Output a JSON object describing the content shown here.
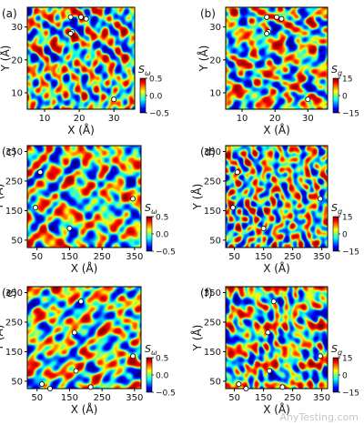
{
  "colormap": [
    "#00007f",
    "#0000ff",
    "#007fff",
    "#00ffff",
    "#7fff7f",
    "#ffff00",
    "#ff7f00",
    "#ff0000",
    "#7f0000"
  ],
  "watermark": "AnyTesting.com",
  "chart_data": [
    {
      "type": "heatmap",
      "panel_label": "(a)",
      "xlabel": "X (Å)",
      "ylabel": "Y (Å)",
      "xlim": [
        5,
        36
      ],
      "ylim": [
        5,
        36
      ],
      "xticks": [
        10,
        20,
        30
      ],
      "yticks": [
        10,
        20,
        30
      ],
      "colorbar": {
        "label": "Sω",
        "label_base": "S",
        "label_sub": "ω",
        "range": [
          -0.5,
          0.5
        ],
        "ticks": [
          0.5,
          0.0,
          -0.5
        ],
        "tick_labels": [
          "0.5",
          "0.0",
          "−0.5"
        ]
      },
      "points": [
        [
          17.5,
          33.0
        ],
        [
          20.5,
          33.0
        ],
        [
          22.0,
          32.5
        ],
        [
          18.0,
          28.5
        ],
        [
          17.5,
          28.0
        ],
        [
          30.0,
          8.0
        ]
      ],
      "seed": 11
    },
    {
      "type": "heatmap",
      "panel_label": "(b)",
      "xlabel": "X (Å)",
      "ylabel": "Y (Å)",
      "xlim": [
        5,
        36
      ],
      "ylim": [
        5,
        36
      ],
      "xticks": [
        10,
        20,
        30
      ],
      "yticks": [
        10,
        20,
        30
      ],
      "colorbar": {
        "label": "Sg",
        "label_base": "S",
        "label_sub": "g",
        "range": [
          -15,
          15
        ],
        "ticks": [
          15,
          0,
          -15
        ],
        "tick_labels": [
          "15",
          "0",
          "−15"
        ]
      },
      "points": [
        [
          17.5,
          33.0
        ],
        [
          20.5,
          33.0
        ],
        [
          22.0,
          32.5
        ],
        [
          18.0,
          28.5
        ],
        [
          17.5,
          28.0
        ],
        [
          30.0,
          8.0
        ]
      ],
      "seed": 23
    },
    {
      "type": "heatmap",
      "panel_label": "(c)",
      "xlabel": "X (Å)",
      "ylabel": "Y (Å)",
      "xlim": [
        20,
        370
      ],
      "ylim": [
        25,
        370
      ],
      "xticks": [
        50,
        150,
        250,
        350
      ],
      "yticks": [
        50,
        150,
        250,
        350
      ],
      "colorbar": {
        "label": "Sω",
        "label_base": "S",
        "label_sub": "ω",
        "range": [
          -0.5,
          0.5
        ],
        "ticks": [
          0.5,
          0.0,
          -0.5
        ],
        "tick_labels": [
          "0.5",
          "0.0",
          "−0.5"
        ]
      },
      "points": [
        [
          60,
          280
        ],
        [
          45,
          160
        ],
        [
          150,
          90
        ],
        [
          345,
          190
        ]
      ],
      "seed": 37
    },
    {
      "type": "heatmap",
      "panel_label": "(d)",
      "xlabel": "X (Å)",
      "ylabel": "Y (Å)",
      "xlim": [
        20,
        370
      ],
      "ylim": [
        25,
        370
      ],
      "xticks": [
        50,
        150,
        250,
        350
      ],
      "yticks": [
        50,
        150,
        250,
        350
      ],
      "colorbar": {
        "label": "Sg",
        "label_base": "S",
        "label_sub": "g",
        "range": [
          -15,
          15
        ],
        "ticks": [
          15,
          0,
          -15
        ],
        "tick_labels": [
          "15",
          "0",
          "−15"
        ]
      },
      "points": [
        [
          60,
          280
        ],
        [
          45,
          160
        ],
        [
          150,
          90
        ],
        [
          345,
          190
        ]
      ],
      "seed": 41
    },
    {
      "type": "heatmap",
      "panel_label": "(e)",
      "xlabel": "X (Å)",
      "ylabel": "Y (Å)",
      "xlim": [
        20,
        370
      ],
      "ylim": [
        25,
        370
      ],
      "xticks": [
        50,
        150,
        250,
        350
      ],
      "yticks": [
        50,
        150,
        250,
        350
      ],
      "colorbar": {
        "label": "Sω",
        "label_base": "S",
        "label_sub": "ω",
        "range": [
          -0.5,
          0.5
        ],
        "ticks": [
          0.5,
          0.0,
          -0.5
        ],
        "tick_labels": [
          "0.5",
          "0.0",
          "−0.5"
        ]
      },
      "points": [
        [
          185,
          320
        ],
        [
          165,
          215
        ],
        [
          170,
          85
        ],
        [
          345,
          135
        ],
        [
          65,
          40
        ],
        [
          90,
          25
        ],
        [
          215,
          30
        ]
      ],
      "seed": 53
    },
    {
      "type": "heatmap",
      "panel_label": "(f)",
      "xlabel": "X (Å)",
      "ylabel": "Y (Å)",
      "xlim": [
        20,
        370
      ],
      "ylim": [
        25,
        370
      ],
      "xticks": [
        50,
        150,
        250,
        350
      ],
      "yticks": [
        50,
        150,
        250,
        350
      ],
      "colorbar": {
        "label": "Sg",
        "label_base": "S",
        "label_sub": "g",
        "range": [
          -15,
          15
        ],
        "ticks": [
          15,
          0,
          -15
        ],
        "tick_labels": [
          "15",
          "0",
          "−15"
        ]
      },
      "points": [
        [
          185,
          320
        ],
        [
          165,
          215
        ],
        [
          170,
          85
        ],
        [
          345,
          135
        ],
        [
          65,
          40
        ],
        [
          90,
          25
        ],
        [
          215,
          30
        ]
      ],
      "seed": 67
    }
  ]
}
